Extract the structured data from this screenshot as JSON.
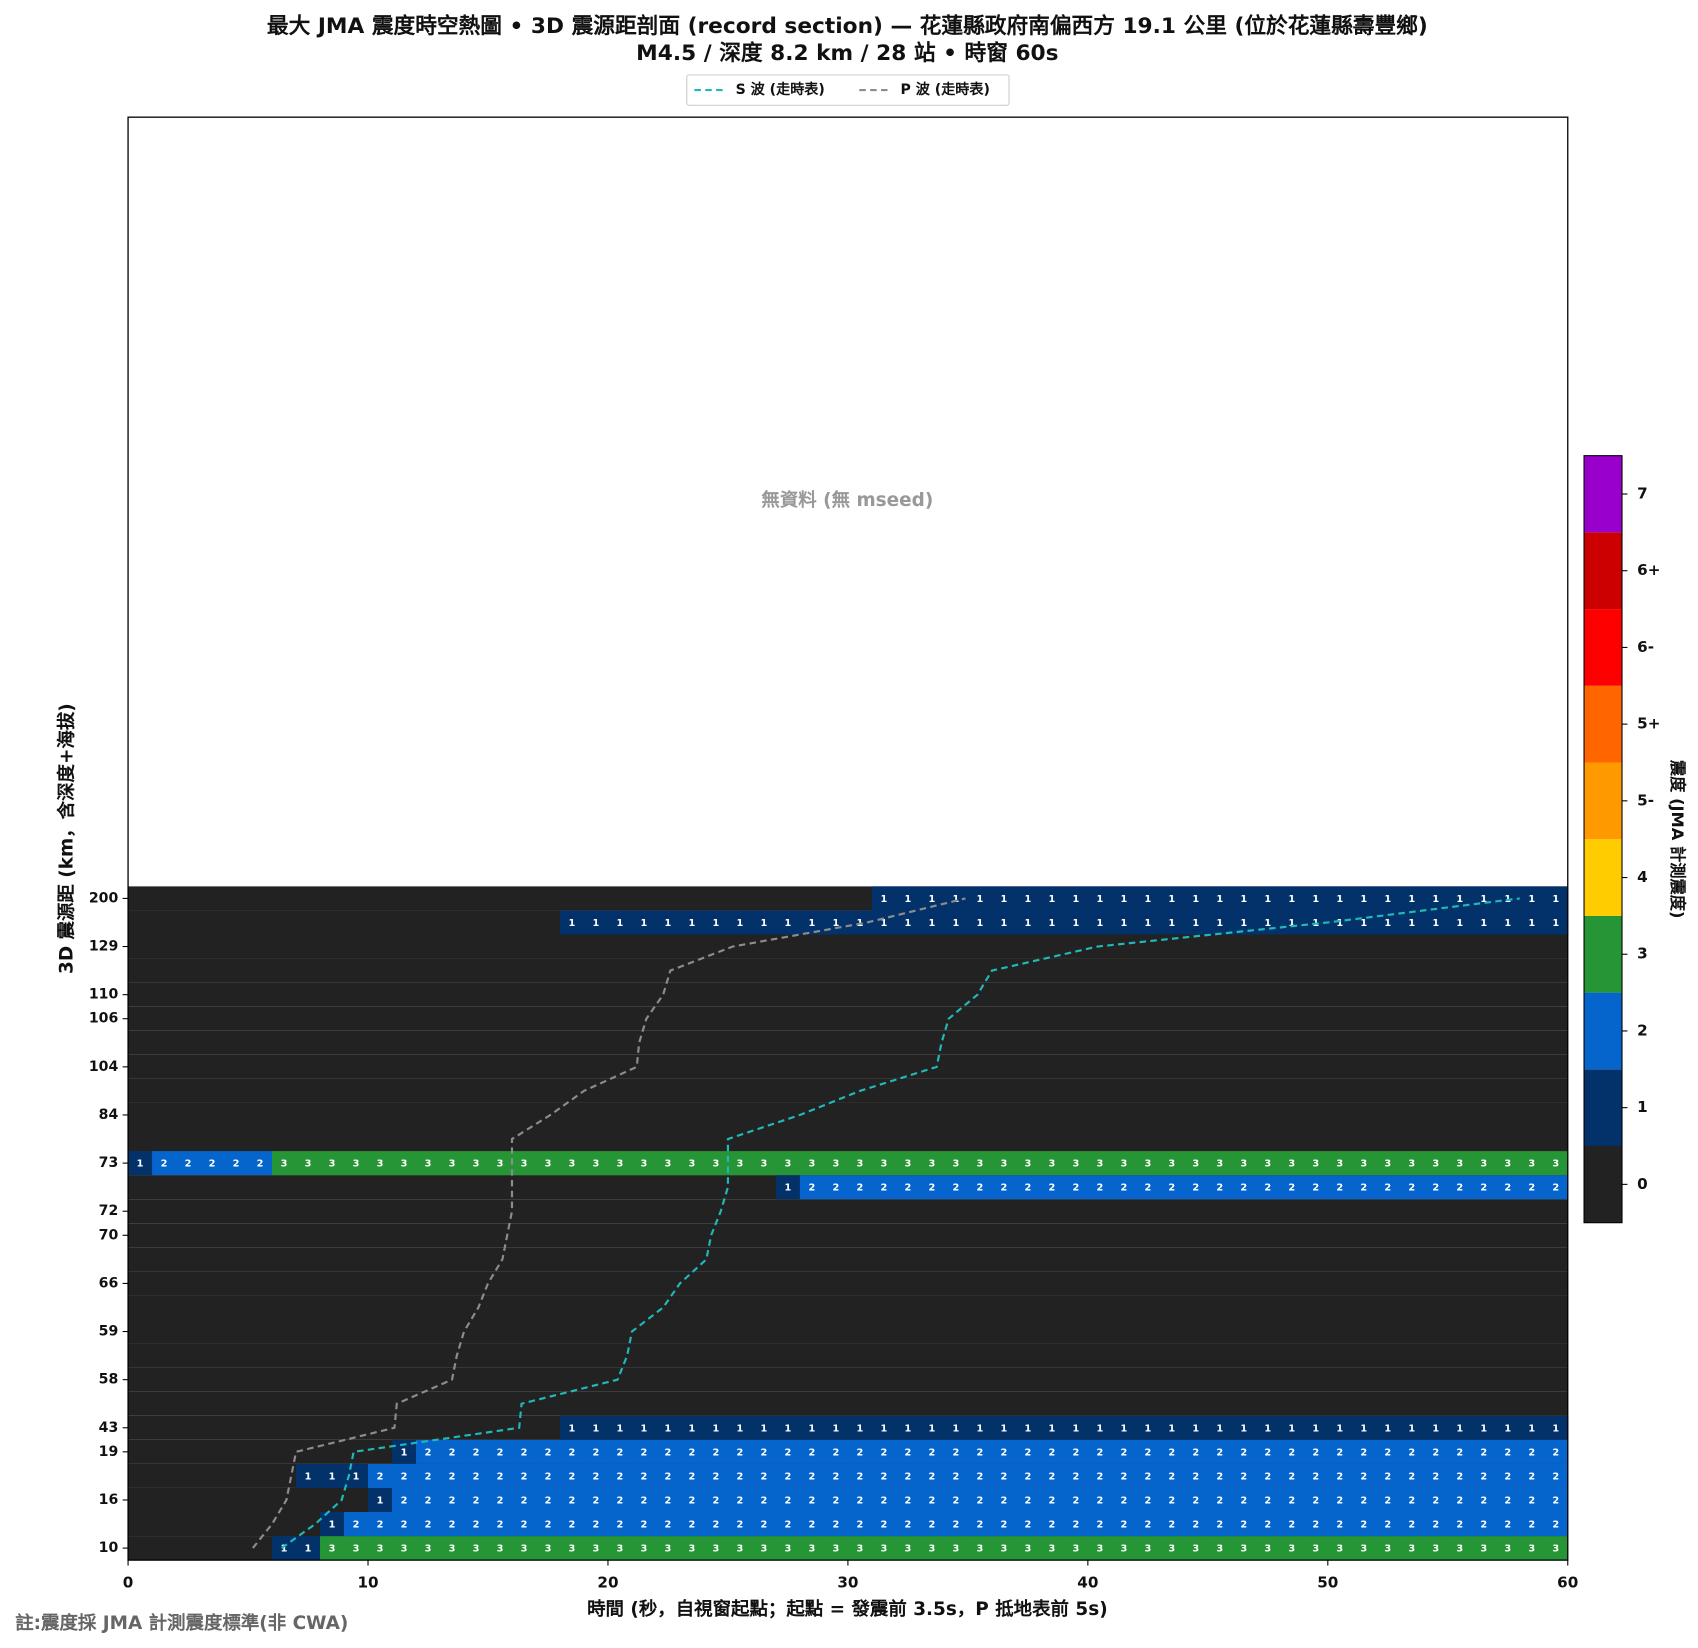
{
  "chart_data": {
    "type": "heatmap",
    "title": "最大 JMA 震度時空熱圖 • 3D 震源距剖面 (record section) — 花蓮縣政府南偏西方  19.1  公里 (位於花蓮縣壽豐鄉)",
    "subtitle": "M4.5 / 深度 8.2 km / 28 站 • 時窗 60s",
    "xlabel": "時間 (秒，自視窗起點；起點 = 發震前 3.5s，P 抵地表前 5s)",
    "ylabel": "3D 震源距 (km，含深度+海拔)",
    "no_data": "無資料 (無 mseed)",
    "note": "註:震度採 JMA 計測震度標準(非 CWA)",
    "xlim": [
      0,
      60
    ],
    "xticks": [
      0,
      10,
      20,
      30,
      40,
      50,
      60
    ],
    "rows": [
      {
        "label": 10,
        "cells": [
          {
            "start": 6,
            "end": 8,
            "value": 1
          },
          {
            "start": 8,
            "end": 60,
            "value": 3
          }
        ]
      },
      {
        "label": null,
        "cells": [
          {
            "start": 8,
            "end": 9,
            "value": 1
          },
          {
            "start": 9,
            "end": 60,
            "value": 2
          }
        ]
      },
      {
        "label": 16,
        "cells": [
          {
            "start": 10,
            "end": 11,
            "value": 1
          },
          {
            "start": 11,
            "end": 60,
            "value": 2
          }
        ]
      },
      {
        "label": null,
        "cells": [
          {
            "start": 7,
            "end": 10,
            "value": 1
          },
          {
            "start": 10,
            "end": 60,
            "value": 2
          }
        ]
      },
      {
        "label": 19,
        "cells": [
          {
            "start": 11,
            "end": 12,
            "value": 1
          },
          {
            "start": 12,
            "end": 60,
            "value": 2
          }
        ]
      },
      {
        "label": 43,
        "cells": [
          {
            "start": 18,
            "end": 60,
            "value": 1
          }
        ]
      },
      {
        "label": null,
        "cells": []
      },
      {
        "label": 58,
        "cells": []
      },
      {
        "label": null,
        "cells": []
      },
      {
        "label": 59,
        "cells": []
      },
      {
        "label": null,
        "cells": []
      },
      {
        "label": 66,
        "cells": []
      },
      {
        "label": null,
        "cells": []
      },
      {
        "label": 70,
        "cells": []
      },
      {
        "label": 72,
        "cells": []
      },
      {
        "label": null,
        "cells": [
          {
            "start": 27,
            "end": 28,
            "value": 1
          },
          {
            "start": 28,
            "end": 60,
            "value": 2
          }
        ]
      },
      {
        "label": 73,
        "cells": [
          {
            "start": 0,
            "end": 1,
            "value": 1
          },
          {
            "start": 1,
            "end": 6,
            "value": 2
          },
          {
            "start": 6,
            "end": 60,
            "value": 3
          }
        ]
      },
      {
        "label": null,
        "cells": []
      },
      {
        "label": 84,
        "cells": []
      },
      {
        "label": null,
        "cells": []
      },
      {
        "label": 104,
        "cells": []
      },
      {
        "label": null,
        "cells": []
      },
      {
        "label": 106,
        "cells": []
      },
      {
        "label": 110,
        "cells": []
      },
      {
        "label": null,
        "cells": []
      },
      {
        "label": 129,
        "cells": []
      },
      {
        "label": null,
        "cells": [
          {
            "start": 18,
            "end": 60,
            "value": 1
          }
        ]
      },
      {
        "label": 200,
        "cells": [
          {
            "start": 31,
            "end": 60,
            "value": 1
          }
        ]
      }
    ],
    "series": [
      {
        "name": "S 波 (走時表)",
        "color": "#20b8b8",
        "values": [
          6.4,
          7.8,
          8.9,
          9.2,
          9.4,
          16.3,
          16.4,
          20.4,
          20.8,
          21.0,
          22.3,
          23.0,
          24.1,
          24.3,
          24.7,
          25.0,
          25.0,
          25.0,
          28.0,
          30.5,
          33.7,
          33.9,
          34.2,
          35.4,
          36.0,
          40.4,
          50.0,
          58.0
        ]
      },
      {
        "name": "P 波 (走時表)",
        "color": "#8c8c8c",
        "values": [
          5.2,
          6.0,
          6.6,
          6.8,
          7.0,
          11.1,
          11.2,
          13.5,
          13.7,
          14.0,
          14.6,
          15.0,
          15.6,
          15.8,
          16.0,
          16.0,
          16.0,
          16.0,
          17.6,
          19.0,
          21.2,
          21.3,
          21.6,
          22.3,
          22.6,
          25.2,
          30.8,
          34.9
        ]
      }
    ],
    "colorbar": {
      "label": "震度 (JMA 計測震度)",
      "levels": [
        "0",
        "1",
        "2",
        "3",
        "4",
        "5-",
        "5+",
        "6-",
        "6+",
        "7"
      ],
      "colors": [
        "#222222",
        "#03326a",
        "#0565cc",
        "#259535",
        "#ffcc00",
        "#ff9900",
        "#ff6600",
        "#ff0000",
        "#cc0000",
        "#9900cc"
      ]
    }
  }
}
